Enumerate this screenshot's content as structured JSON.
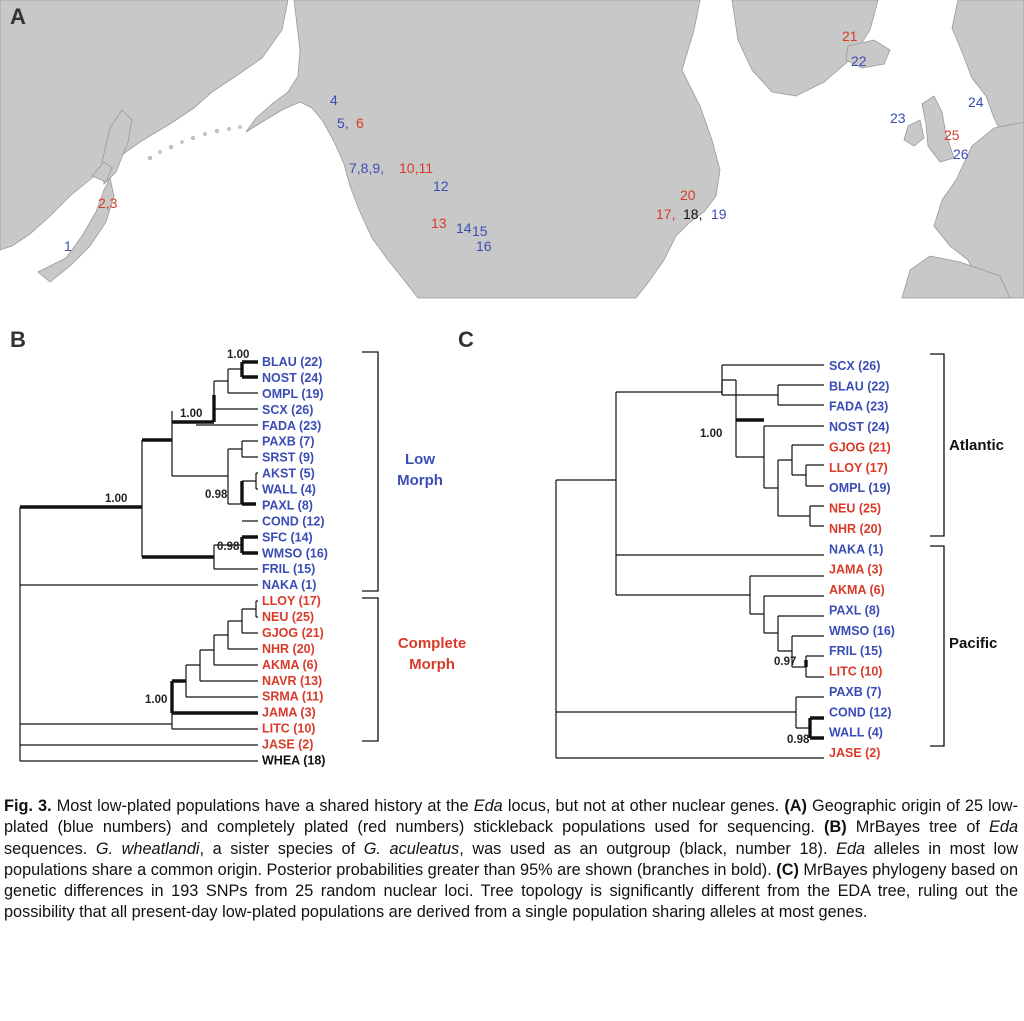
{
  "figure": {
    "panel_a_label": "A",
    "panel_b_label": "B",
    "panel_c_label": "C",
    "colors": {
      "low": "#3a4db5",
      "complete": "#d93a2a",
      "outgroup": "#111111",
      "land": "#c8c8c8",
      "sea": "#ffffff"
    },
    "map_labels": [
      {
        "text": "1",
        "color": "blue"
      },
      {
        "text": "2,3",
        "color": "red"
      },
      {
        "text": "4",
        "color": "blue"
      },
      {
        "text": "5,",
        "color": "blue"
      },
      {
        "text": "6",
        "color": "red"
      },
      {
        "text": "7,8,9,",
        "color": "blue"
      },
      {
        "text": "10,11",
        "color": "red"
      },
      {
        "text": "12",
        "color": "blue"
      },
      {
        "text": "13",
        "color": "red"
      },
      {
        "text": "14",
        "color": "blue"
      },
      {
        "text": "15",
        "color": "blue"
      },
      {
        "text": "16",
        "color": "blue"
      },
      {
        "text": "20",
        "color": "red"
      },
      {
        "text": "17,",
        "color": "red"
      },
      {
        "text": "18,",
        "color": "black"
      },
      {
        "text": "19",
        "color": "blue"
      },
      {
        "text": "21",
        "color": "red"
      },
      {
        "text": "22",
        "color": "blue"
      },
      {
        "text": "23",
        "color": "blue"
      },
      {
        "text": "24",
        "color": "blue"
      },
      {
        "text": "25",
        "color": "red"
      },
      {
        "text": "26",
        "color": "blue"
      }
    ],
    "tree_b": {
      "leaves": [
        {
          "label": "BLAU (22)",
          "color": "blue"
        },
        {
          "label": "NOST (24)",
          "color": "blue"
        },
        {
          "label": "OMPL (19)",
          "color": "blue"
        },
        {
          "label": "SCX (26)",
          "color": "blue"
        },
        {
          "label": "FADA (23)",
          "color": "blue"
        },
        {
          "label": "PAXB (7)",
          "color": "blue"
        },
        {
          "label": "SRST (9)",
          "color": "blue"
        },
        {
          "label": "AKST (5)",
          "color": "blue"
        },
        {
          "label": "WALL (4)",
          "color": "blue"
        },
        {
          "label": "PAXL (8)",
          "color": "blue"
        },
        {
          "label": "COND (12)",
          "color": "blue"
        },
        {
          "label": "SFC (14)",
          "color": "blue"
        },
        {
          "label": "WMSO (16)",
          "color": "blue"
        },
        {
          "label": "FRIL (15)",
          "color": "blue"
        },
        {
          "label": "NAKA (1)",
          "color": "blue"
        },
        {
          "label": "LLOY (17)",
          "color": "red"
        },
        {
          "label": "NEU (25)",
          "color": "red"
        },
        {
          "label": "GJOG (21)",
          "color": "red"
        },
        {
          "label": "NHR (20)",
          "color": "red"
        },
        {
          "label": "AKMA (6)",
          "color": "red"
        },
        {
          "label": "NAVR (13)",
          "color": "red"
        },
        {
          "label": "SRMA (11)",
          "color": "red"
        },
        {
          "label": "JAMA (3)",
          "color": "red"
        },
        {
          "label": "LITC (10)",
          "color": "red"
        },
        {
          "label": "JASE (2)",
          "color": "red"
        },
        {
          "label": "WHEA (18)",
          "color": "black"
        }
      ],
      "support": [
        "1.00",
        "1.00",
        "1.00",
        "0.98",
        "0.98",
        "1.00"
      ],
      "groups": {
        "low_line1": "Low",
        "low_line2": "Morph",
        "complete_line1": "Complete",
        "complete_line2": "Morph"
      }
    },
    "tree_c": {
      "leaves": [
        {
          "label": "SCX (26)",
          "color": "blue"
        },
        {
          "label": "BLAU (22)",
          "color": "blue"
        },
        {
          "label": "FADA (23)",
          "color": "blue"
        },
        {
          "label": "NOST (24)",
          "color": "blue"
        },
        {
          "label": "GJOG (21)",
          "color": "red"
        },
        {
          "label": "LLOY (17)",
          "color": "red"
        },
        {
          "label": "OMPL (19)",
          "color": "blue"
        },
        {
          "label": "NEU (25)",
          "color": "red"
        },
        {
          "label": "NHR (20)",
          "color": "red"
        },
        {
          "label": "NAKA (1)",
          "color": "blue"
        },
        {
          "label": "JAMA (3)",
          "color": "red"
        },
        {
          "label": "AKMA (6)",
          "color": "red"
        },
        {
          "label": "PAXL (8)",
          "color": "blue"
        },
        {
          "label": "WMSO (16)",
          "color": "blue"
        },
        {
          "label": "FRIL (15)",
          "color": "blue"
        },
        {
          "label": "LITC (10)",
          "color": "red"
        },
        {
          "label": "PAXB (7)",
          "color": "blue"
        },
        {
          "label": "COND (12)",
          "color": "blue"
        },
        {
          "label": "WALL (4)",
          "color": "blue"
        },
        {
          "label": "JASE (2)",
          "color": "red"
        }
      ],
      "support": [
        "1.00",
        "0.97",
        "0.98"
      ],
      "groups": {
        "atlantic": "Atlantic",
        "pacific": "Pacific"
      }
    }
  },
  "caption": {
    "fig_label": "Fig. 3.",
    "p1": " Most low-plated populations have a shared history at the ",
    "eda1": "Eda",
    "p2": " locus, but not at other nuclear genes. ",
    "A": "(A)",
    "p3": " Geographic origin of 25 low-plated (blue numbers) and completely plated (red numbers) stickleback populations used for sequencing. ",
    "B": "(B)",
    "p4": " MrBayes tree of ",
    "eda2": "Eda",
    "p5": " sequences. ",
    "gw": "G. wheatlandi",
    "p6": ", a sister species of ",
    "ga": "G. aculeatus",
    "p7": ", was used as an outgroup (black, number 18). ",
    "eda3": "Eda",
    "p8": " alleles in most low populations share a common origin. Posterior probabilities greater than 95% are shown (branches in bold). ",
    "C": "(C)",
    "p9": " MrBayes phylogeny based on genetic differences in 193 SNPs from 25 random nuclear loci. Tree topology is significantly different from the EDA tree, ruling out the possibility that all present-day low-plated populations are derived from a single population sharing alleles at most genes."
  }
}
